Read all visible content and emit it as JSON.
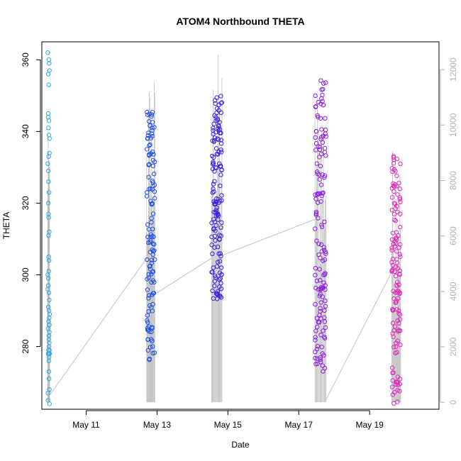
{
  "chart_data": {
    "type": "scatter",
    "title": "ATOM4 Northbound THETA",
    "xlabel": "Date",
    "ylabel": "THETA",
    "x_ticks": [
      "May 11",
      "May 13",
      "May 15",
      "May 17",
      "May 19"
    ],
    "y_ticks": [
      280,
      300,
      320,
      340,
      360
    ],
    "y2_ticks": [
      0,
      2000,
      4000,
      6000,
      8000,
      10000,
      12000
    ],
    "x_range": [
      "2021-05-09 18:00",
      "2021-05-20 23:00"
    ],
    "ylim": [
      262.5,
      365
    ],
    "y2lim": [
      -250,
      13000
    ],
    "grid": false,
    "colors": {
      "series_gradient": [
        "#29a8e6",
        "#1f4fe6",
        "#3b22e0",
        "#8a1fe0",
        "#e02aba"
      ],
      "secondary_line": "#bdbdbd",
      "axis": "#000000",
      "right_axis": "#b3b3b3"
    },
    "series": [
      {
        "kind": "points",
        "x_start": "2021-05-09 22:00",
        "x_end": "2021-05-09 23:15",
        "y_range": [
          264,
          362
        ],
        "count": 60,
        "color": "#29a8e6",
        "y": [
          278,
          286,
          283,
          290,
          296,
          301,
          311,
          316,
          323,
          329,
          333,
          338,
          344,
          353,
          357,
          360,
          362,
          343,
          339,
          326,
          312,
          304,
          299,
          293,
          289,
          287,
          285,
          282,
          280,
          279,
          276,
          271,
          267,
          264,
          265,
          278,
          279,
          288,
          297,
          334,
          356,
          359,
          341,
          317,
          300,
          291,
          286,
          284,
          281,
          278,
          273,
          268,
          320,
          331,
          345,
          305,
          295,
          283,
          277,
          278
        ]
      },
      {
        "kind": "points",
        "x_start": "2021-05-12 17:00",
        "x_end": "2021-05-12 22:30",
        "y_range": [
          276,
          346
        ],
        "count": 120,
        "color": "#1f4fe6"
      },
      {
        "kind": "points",
        "x_start": "2021-05-14 13:00",
        "x_end": "2021-05-14 20:00",
        "y_range": [
          293,
          350
        ],
        "count": 140,
        "color": "#3b22e0"
      },
      {
        "kind": "points",
        "x_start": "2021-05-17 11:00",
        "x_end": "2021-05-17 18:30",
        "y_range": [
          273,
          357
        ],
        "count": 140,
        "color": "#8a1fe0"
      },
      {
        "kind": "points",
        "x_start": "2021-05-19 15:00",
        "x_end": "2021-05-19 21:00",
        "y_range": [
          264,
          335
        ],
        "count": 130,
        "color": "#e02aba"
      }
    ],
    "secondary_series": {
      "axis": "right",
      "color": "#bdbdbd",
      "baseline": 0,
      "segments": [
        {
          "x_start": "2021-05-09 22:00",
          "x_end": "2021-05-09 23:15",
          "y_max": 9800
        },
        {
          "x_start": "2021-05-12 17:00",
          "x_end": "2021-05-12 22:30",
          "y_max": 12200
        },
        {
          "x_start": "2021-05-14 13:00",
          "x_end": "2021-05-14 20:00",
          "y_max": 12750
        },
        {
          "x_start": "2021-05-17 11:00",
          "x_end": "2021-05-17 18:30",
          "y_max": 12200
        },
        {
          "x_start": "2021-05-19 15:00",
          "x_end": "2021-05-19 21:00",
          "y_max": 9400
        }
      ],
      "connectors": [
        {
          "x1": "2021-05-09 23:15",
          "y1": 250,
          "x2": "2021-05-12 17:00",
          "y2": 5200
        },
        {
          "x1": "2021-05-12 22:30",
          "y1": 3900,
          "x2": "2021-05-14 13:00",
          "y2": 5200
        },
        {
          "x1": "2021-05-14 20:00",
          "y1": 5300,
          "x2": "2021-05-17 11:00",
          "y2": 6600
        },
        {
          "x1": "2021-05-17 18:30",
          "y1": 100,
          "x2": "2021-05-19 15:00",
          "y2": 4700
        }
      ]
    }
  }
}
